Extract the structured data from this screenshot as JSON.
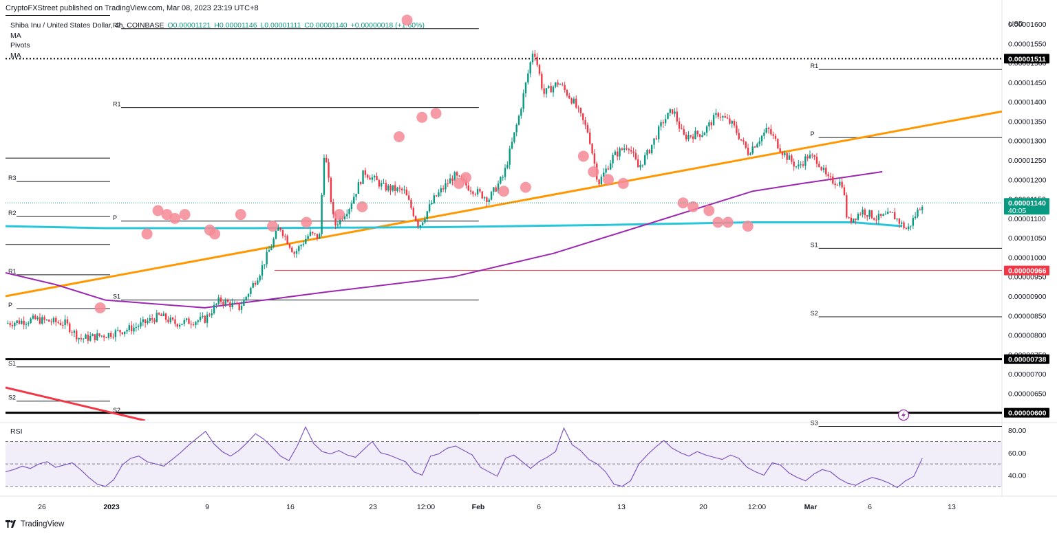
{
  "header": {
    "credit": "CryptoFXStreet published on TradingView.com, Mar 08, 2023 23:19 UTC+8",
    "symbol": "Shiba Inu / United States Dollar, 4h, COINBASE",
    "open": "O0.00001121",
    "high": "H0.00001146",
    "low": "L0.00001111",
    "close": "C0.00001140",
    "change": "+0.00000018 (+1.60%)",
    "indicators": [
      "MA",
      "Pivots",
      "MA"
    ],
    "currency": "USD"
  },
  "footer": {
    "brand": "TradingView",
    "logo_icon": "tradingview-logo-icon"
  },
  "rsi": {
    "title": "RSI",
    "ticks": [
      "80.00",
      "60.00",
      "40.00"
    ]
  },
  "colors": {
    "up": "#089981",
    "down": "#f23645",
    "trend_orange": "#ff9800",
    "ma_purple": "#9c27b0",
    "ma_cyan": "#26c6da",
    "red_line": "#f23645",
    "marker": "#f48a95",
    "rsi_line": "#7e57c2"
  },
  "chart_data": [
    {
      "type": "candlestick",
      "title": "",
      "symbol": "SHIB/USD 4h COINBASE",
      "x_axis": {
        "ticks": [
          "26",
          "2023",
          "9",
          "16",
          "23",
          "12:00",
          "Feb",
          "6",
          "13",
          "20",
          "12:00",
          "Mar",
          "6",
          "13"
        ]
      },
      "y_axis": {
        "ticks": [
          "0.00001600",
          "0.00001550",
          "0.00001500",
          "0.00001450",
          "0.00001400",
          "0.00001350",
          "0.00001300",
          "0.00001250",
          "0.00001200",
          "0.00001150",
          "0.00001100",
          "0.00001050",
          "0.00001000",
          "0.00000950",
          "0.00000900",
          "0.00000850",
          "0.00000800",
          "0.00000750",
          "0.00000700",
          "0.00000650",
          "0.00000600"
        ],
        "range": [
          5.8e-06,
          1.63e-05
        ]
      },
      "price_labels": [
        {
          "value": 1.511e-05,
          "text": "0.00001511",
          "style": "black"
        },
        {
          "value": 1.14e-05,
          "text": "0.00001140",
          "sub": "40:05",
          "style": "green"
        },
        {
          "value": 9.66e-06,
          "text": "0.00000966",
          "style": "red"
        },
        {
          "value": 7.38e-06,
          "text": "0.00000738",
          "style": "black"
        },
        {
          "value": 6e-06,
          "text": "0.00000600",
          "style": "black"
        }
      ],
      "horizontal_lines": [
        {
          "value": 1.511e-05,
          "style": "dotted"
        },
        {
          "value": 7.38e-06,
          "style": "thick"
        },
        {
          "value": 6e-06,
          "style": "thick"
        },
        {
          "value": 9.66e-06,
          "style": "red-thin"
        }
      ],
      "pivot_sets": [
        {
          "x_start": 0.0,
          "x_end": 0.105,
          "levels": [
            {
              "name": "R3",
              "value": 1.195e-05
            },
            {
              "name": "R2",
              "value": 1.105e-05
            },
            {
              "name": "R1",
              "value": 9.55e-06
            },
            {
              "name": "P",
              "value": 8.68e-06
            },
            {
              "name": "S1",
              "value": 7.18e-06
            },
            {
              "name": "S2",
              "value": 6.3e-06
            }
          ]
        },
        {
          "x_start": 0.105,
          "x_end": 0.475,
          "levels": [
            {
              "name": "R2",
              "value": 1.588e-05
            },
            {
              "name": "R1",
              "value": 1.385e-05
            },
            {
              "name": "P",
              "value": 1.093e-05
            },
            {
              "name": "S1",
              "value": 8.9e-06
            },
            {
              "name": "S2",
              "value": 5.98e-06
            }
          ]
        },
        {
          "x_start": 0.805,
          "x_end": 1.0,
          "levels": [
            {
              "name": "R1",
              "value": 1.483e-05
            },
            {
              "name": "P",
              "value": 1.308e-05
            },
            {
              "name": "S1",
              "value": 1.023e-05
            },
            {
              "name": "S2",
              "value": 8.47e-06
            },
            {
              "name": "S3",
              "value": 5.65e-06
            }
          ]
        }
      ],
      "moving_averages": [
        {
          "color": "cyan",
          "points": [
            [
              0,
              1.08e-05
            ],
            [
              0.1,
              1.075e-05
            ],
            [
              0.25,
              1.075e-05
            ],
            [
              0.45,
              1.078e-05
            ],
            [
              0.6,
              1.083e-05
            ],
            [
              0.75,
              1.09e-05
            ],
            [
              0.85,
              1.09e-05
            ],
            [
              0.9,
              1.08e-05
            ]
          ]
        },
        {
          "color": "purple",
          "points": [
            [
              0,
              9.6e-06
            ],
            [
              0.05,
              9.3e-06
            ],
            [
              0.1,
              8.9e-06
            ],
            [
              0.2,
              8.7e-06
            ],
            [
              0.32,
              9.1e-06
            ],
            [
              0.45,
              9.5e-06
            ],
            [
              0.55,
              1.01e-05
            ],
            [
              0.65,
              1.09e-05
            ],
            [
              0.75,
              1.17e-05
            ],
            [
              0.8,
              1.19e-05
            ],
            [
              0.88,
              1.22e-05
            ]
          ]
        }
      ],
      "trendlines": [
        {
          "color": "orange",
          "from": [
            0,
            9e-06
          ],
          "to": [
            1,
            1.375e-05
          ]
        },
        {
          "color": "red",
          "from": [
            0,
            6.65e-06
          ],
          "to": [
            0.14,
            5.8e-06
          ]
        }
      ],
      "price_path": [
        [
          0.0,
          8.3e-06
        ],
        [
          0.03,
          8.4e-06
        ],
        [
          0.06,
          8.3e-06
        ],
        [
          0.075,
          7.9e-06
        ],
        [
          0.1,
          8e-06
        ],
        [
          0.13,
          8.2e-06
        ],
        [
          0.155,
          8.5e-06
        ],
        [
          0.17,
          8.3e-06
        ],
        [
          0.2,
          8.4e-06
        ],
        [
          0.215,
          8.9e-06
        ],
        [
          0.235,
          8.7e-06
        ],
        [
          0.255,
          9.6e-06
        ],
        [
          0.275,
          1.08e-05
        ],
        [
          0.29,
          1.01e-05
        ],
        [
          0.305,
          1.06e-05
        ],
        [
          0.315,
          1.05e-05
        ],
        [
          0.32,
          1.28e-05
        ],
        [
          0.33,
          1.08e-05
        ],
        [
          0.345,
          1.13e-05
        ],
        [
          0.36,
          1.22e-05
        ],
        [
          0.38,
          1.18e-05
        ],
        [
          0.4,
          1.17e-05
        ],
        [
          0.415,
          1.08e-05
        ],
        [
          0.43,
          1.15e-05
        ],
        [
          0.45,
          1.21e-05
        ],
        [
          0.465,
          1.18e-05
        ],
        [
          0.485,
          1.15e-05
        ],
        [
          0.5,
          1.21e-05
        ],
        [
          0.515,
          1.36e-05
        ],
        [
          0.53,
          1.54e-05
        ],
        [
          0.54,
          1.42e-05
        ],
        [
          0.555,
          1.45e-05
        ],
        [
          0.57,
          1.4e-05
        ],
        [
          0.585,
          1.32e-05
        ],
        [
          0.595,
          1.19e-05
        ],
        [
          0.61,
          1.26e-05
        ],
        [
          0.625,
          1.29e-05
        ],
        [
          0.635,
          1.23e-05
        ],
        [
          0.645,
          1.27e-05
        ],
        [
          0.66,
          1.35e-05
        ],
        [
          0.67,
          1.38e-05
        ],
        [
          0.68,
          1.31e-05
        ],
        [
          0.7,
          1.32e-05
        ],
        [
          0.715,
          1.37e-05
        ],
        [
          0.73,
          1.34e-05
        ],
        [
          0.745,
          1.27e-05
        ],
        [
          0.765,
          1.33e-05
        ],
        [
          0.78,
          1.27e-05
        ],
        [
          0.795,
          1.23e-05
        ],
        [
          0.805,
          1.26e-05
        ],
        [
          0.815,
          1.25e-05
        ],
        [
          0.825,
          1.2e-05
        ],
        [
          0.84,
          1.19e-05
        ],
        [
          0.845,
          1.09e-05
        ],
        [
          0.86,
          1.12e-05
        ],
        [
          0.875,
          1.1e-05
        ],
        [
          0.89,
          1.11e-05
        ],
        [
          0.905,
          1.07e-05
        ],
        [
          0.92,
          1.14e-05
        ]
      ],
      "markers": [
        [
          0.095,
          8.7e-06
        ],
        [
          0.142,
          1.06e-05
        ],
        [
          0.153,
          1.12e-05
        ],
        [
          0.162,
          1.11e-05
        ],
        [
          0.17,
          1.1e-05
        ],
        [
          0.18,
          1.11e-05
        ],
        [
          0.205,
          1.07e-05
        ],
        [
          0.21,
          1.06e-05
        ],
        [
          0.236,
          1.11e-05
        ],
        [
          0.268,
          1.08e-05
        ],
        [
          0.302,
          1.09e-05
        ],
        [
          0.335,
          1.11e-05
        ],
        [
          0.358,
          1.13e-05
        ],
        [
          0.395,
          1.31e-05
        ],
        [
          0.403,
          1.61e-05
        ],
        [
          0.418,
          1.36e-05
        ],
        [
          0.432,
          1.37e-05
        ],
        [
          0.455,
          1.19e-05
        ],
        [
          0.462,
          1.205e-05
        ],
        [
          0.5,
          1.17e-05
        ],
        [
          0.522,
          1.18e-05
        ],
        [
          0.58,
          1.26e-05
        ],
        [
          0.59,
          1.22e-05
        ],
        [
          0.605,
          1.2e-05
        ],
        [
          0.62,
          1.19e-05
        ],
        [
          0.68,
          1.14e-05
        ],
        [
          0.69,
          1.13e-05
        ],
        [
          0.706,
          1.12e-05
        ],
        [
          0.715,
          1.09e-05
        ],
        [
          0.725,
          1.09e-05
        ],
        [
          0.745,
          1.08e-05
        ]
      ]
    },
    {
      "type": "line",
      "title": "RSI",
      "y_axis": {
        "ticks": [
          "80.00",
          "60.00",
          "40.00"
        ],
        "range": [
          25,
          85
        ],
        "bands": [
          70,
          50,
          30
        ]
      },
      "values": [
        43,
        45,
        48,
        46,
        50,
        52,
        47,
        49,
        51,
        45,
        38,
        32,
        30,
        36,
        49,
        55,
        57,
        52,
        50,
        48,
        54,
        60,
        67,
        73,
        79,
        68,
        61,
        57,
        62,
        69,
        77,
        72,
        65,
        57,
        53,
        66,
        83,
        68,
        61,
        59,
        62,
        58,
        56,
        63,
        70,
        60,
        58,
        55,
        52,
        43,
        40,
        57,
        59,
        64,
        66,
        62,
        58,
        47,
        43,
        39,
        55,
        58,
        52,
        46,
        52,
        56,
        61,
        82,
        67,
        62,
        54,
        50,
        43,
        32,
        30,
        35,
        50,
        58,
        65,
        71,
        64,
        60,
        57,
        61,
        58,
        56,
        54,
        58,
        55,
        47,
        43,
        40,
        51,
        49,
        42,
        38,
        35,
        41,
        45,
        43,
        37,
        33,
        31,
        35,
        38,
        36,
        33,
        29,
        35,
        39,
        55
      ]
    }
  ]
}
